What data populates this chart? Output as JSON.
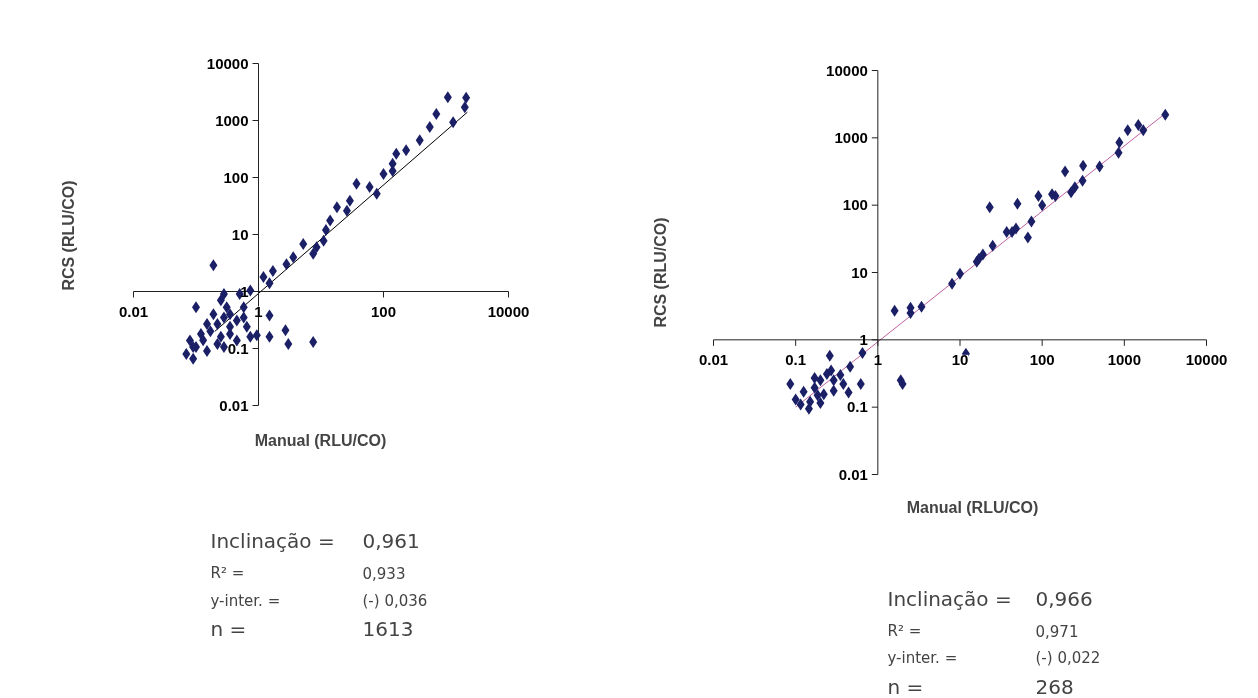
{
  "chart_data": [
    {
      "type": "scatter",
      "xlabel": "Manual (RLU/CO)",
      "ylabel": "RCS (RLU/CO)",
      "log": "xy",
      "xlim": [
        0.01,
        10000
      ],
      "ylim": [
        0.01,
        10000
      ],
      "xticks": [
        0.01,
        1,
        100,
        10000
      ],
      "yticks": [
        0.01,
        0.1,
        1,
        10,
        100,
        1000,
        10000
      ],
      "annotations": [
        "Inclinação = 0,961",
        "R² = 0,933",
        "y-inter. = (-) 0,036",
        "n = 1613"
      ],
      "series": [
        {
          "type": "line",
          "color": "#000000",
          "x": [
            0.2,
            2200
          ],
          "values": [
            0.2,
            1400
          ]
        },
        {
          "marker": "diamond",
          "color": "#1a1f66",
          "x": [
            1070,
            2100,
            2000,
            700,
            1300,
            550,
            380,
            230,
            160,
            140,
            100,
            140,
            60,
            78,
            37,
            29,
            26,
            18,
            14,
            12,
            11,
            8.5,
            5.2,
            7.5,
            3.6,
            2.8,
            1.7,
            1.5,
            1.2,
            0.74,
            0.5,
            0.19,
            0.28,
            0.1,
            1.5,
            0.94,
            1.5,
            2.7,
            3.0,
            7.5,
            0.58,
            0.07,
            0.09,
            0.1,
            0.13,
            0.17,
            0.22,
            0.28,
            0.35,
            0.45,
            0.65,
            0.35,
            0.22,
            0.15,
            0.28,
            0.45,
            0.19,
            0.15,
            0.12,
            0.09,
            0.08,
            0.25,
            0.35,
            0.58,
            0.74,
            0.31,
            0.25
          ],
          "values": [
            2570,
            2500,
            1700,
            1300,
            930,
            770,
            450,
            300,
            260,
            130,
            115,
            175,
            68,
            52,
            78,
            39,
            26,
            30,
            17.6,
            12,
            7.8,
            6,
            6.8,
            4.6,
            4,
            3,
            2.3,
            1.4,
            1.8,
            1.04,
            0.9,
            2.9,
            0.9,
            0.53,
            0.38,
            0.17,
            0.16,
            0.21,
            0.12,
            0.13,
            0.53,
            0.08,
            0.066,
            0.106,
            0.14,
            0.2,
            0.27,
            0.35,
            0.4,
            0.31,
            0.24,
            0.18,
            0.12,
            0.09,
            0.106,
            0.138,
            0.4,
            0.27,
            0.18,
            0.106,
            0.138,
            0.16,
            0.24,
            0.35,
            0.16,
            0.53,
            0.7
          ]
        }
      ]
    },
    {
      "type": "scatter",
      "xlabel": "Manual (RLU/CO)",
      "ylabel": "RCS (RLU/CO)",
      "log": "xy",
      "xlim": [
        0.01,
        10000
      ],
      "ylim": [
        0.01,
        10000
      ],
      "xticks": [
        0.01,
        0.1,
        1,
        10,
        100,
        1000,
        10000
      ],
      "yticks": [
        0.01,
        0.1,
        1,
        10,
        100,
        1000,
        10000
      ],
      "annotations": [
        "Inclinação = 0,966",
        "R² = 0,971",
        "y-inter. = (-) 0,022",
        "n = 268"
      ],
      "series": [
        {
          "type": "line",
          "color": "#c060a0",
          "x": [
            0.1,
            3000
          ],
          "values": [
            0.1,
            2200
          ]
        },
        {
          "marker": "diamond",
          "color": "#1a1f66",
          "x": [
            3150,
            1480,
            1700,
            1100,
            870,
            850,
            500,
            310,
            315,
            250,
            225,
            190,
            145,
            132,
            90,
            100,
            74,
            67,
            48,
            43,
            37,
            50,
            23,
            25,
            19,
            17,
            16,
            10,
            8,
            3.4,
            2.5,
            2.5,
            1.6,
            1.9,
            2.0,
            11.8,
            0.65,
            0.62,
            0.46,
            0.26,
            0.44,
            0.086,
            0.1,
            0.125,
            0.15,
            0.145,
            0.2,
            0.17,
            0.2,
            0.24,
            0.29,
            0.35,
            0.29,
            0.22,
            0.17,
            0.38,
            0.115,
            0.185,
            0.27
          ],
          "values": [
            2200,
            1550,
            1300,
            1300,
            850,
            600,
            375,
            230,
            385,
            185,
            155,
            315,
            137,
            145,
            137,
            100,
            57,
            33,
            45,
            40,
            40,
            105,
            93,
            25,
            18.5,
            16,
            14.5,
            9.6,
            6.8,
            3.1,
            2.5,
            3,
            2.7,
            0.25,
            0.22,
            0.62,
            0.64,
            0.22,
            0.4,
            0.58,
            0.165,
            0.22,
            0.13,
            0.17,
            0.12,
            0.095,
            0.115,
            0.195,
            0.25,
            0.31,
            0.25,
            0.3,
            0.175,
            0.155,
            0.27,
            0.22,
            0.11,
            0.15,
            0.35
          ]
        }
      ]
    }
  ]
}
